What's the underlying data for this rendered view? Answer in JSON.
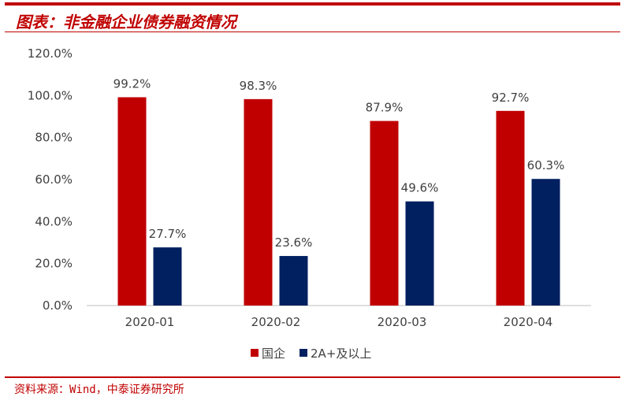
{
  "header": {
    "title": "图表：非金融企业债券融资情况"
  },
  "footer": {
    "source": "资料来源：Wind，中泰证券研究所"
  },
  "chart_data": {
    "type": "bar",
    "title": "图表：非金融企业债券融资情况",
    "categories": [
      "2020-01",
      "2020-02",
      "2020-03",
      "2020-04"
    ],
    "series": [
      {
        "name": "国企",
        "color": "#c00000",
        "values": [
          99.2,
          98.3,
          87.9,
          92.7
        ],
        "labels": [
          "99.2%",
          "98.3%",
          "87.9%",
          "92.7%"
        ]
      },
      {
        "name": "2A+及以上",
        "color": "#002060",
        "values": [
          27.7,
          23.6,
          49.6,
          60.3
        ],
        "labels": [
          "27.7%",
          "23.6%",
          "49.6%",
          "60.3%"
        ]
      }
    ],
    "yticks": [
      "0.0%",
      "20.0%",
      "40.0%",
      "60.0%",
      "80.0%",
      "100.0%",
      "120.0%"
    ],
    "ylim": [
      0,
      120
    ],
    "grid": false,
    "legend": "bottom"
  }
}
